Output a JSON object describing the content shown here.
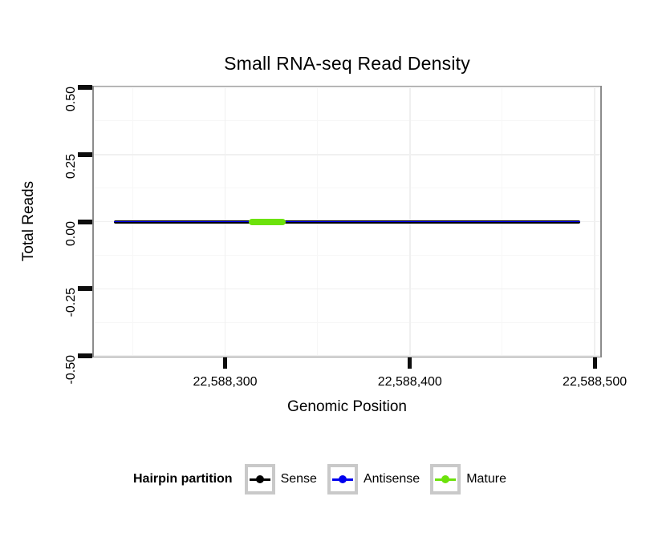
{
  "chart_data": {
    "type": "line",
    "title": "Small RNA-seq Read Density",
    "xlabel": "Genomic Position",
    "ylabel": "Total Reads",
    "xlim": [
      22588229,
      22588503
    ],
    "ylim": [
      -0.5,
      0.5
    ],
    "x_ticks": [
      {
        "value": 22588300,
        "label": "22,588,300"
      },
      {
        "value": 22588400,
        "label": "22,588,400"
      },
      {
        "value": 22588500,
        "label": "22,588,500"
      }
    ],
    "x_minor_ticks": [
      22588250,
      22588350,
      22588450
    ],
    "y_ticks": [
      {
        "value": 0.5,
        "label": "0.50"
      },
      {
        "value": 0.25,
        "label": "0.25"
      },
      {
        "value": 0,
        "label": "0.00"
      },
      {
        "value": -0.25,
        "label": "-0.25"
      },
      {
        "value": -0.5,
        "label": "-0.50"
      }
    ],
    "y_minor_ticks": [
      0.375,
      0.125,
      -0.125,
      -0.375
    ],
    "grid": {
      "visible": true,
      "major_color": "#F0F0F0",
      "minor_color": "#F7F7F7"
    },
    "colors": {
      "panel_border": "#8C8C8C",
      "tick_mark": "#0d0d0d",
      "background": "#FFFFFF"
    },
    "legend": {
      "title": "Hairpin partition",
      "position": "bottom"
    },
    "series": [
      {
        "name": "Sense",
        "color": "#000000",
        "line_size": 4,
        "y": 0,
        "x_start": 22588240,
        "x_end": 22588492
      },
      {
        "name": "Antisense",
        "color": "#0000EE",
        "line_size": 1.6,
        "y": 0,
        "x_start": 22588240,
        "x_end": 22588492
      },
      {
        "name": "Mature",
        "color": "#6CE20B",
        "line_size": 8,
        "y": 0,
        "x_start": 22588313,
        "x_end": 22588333
      }
    ]
  }
}
